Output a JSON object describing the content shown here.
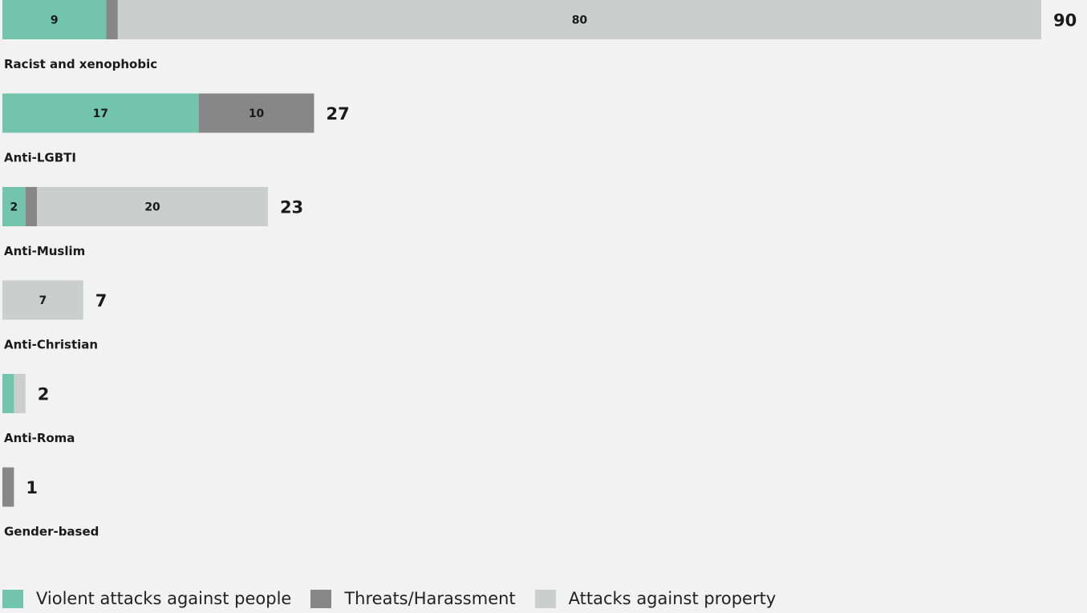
{
  "chart_data": {
    "type": "bar",
    "orientation": "horizontal",
    "stacked": true,
    "categories": [
      "Racist and xenophobic",
      "Anti-LGBTI",
      "Anti-Muslim",
      "Anti-Christian",
      "Anti-Roma",
      "Gender-based"
    ],
    "series": [
      {
        "name": "Violent attacks against people",
        "values": [
          9,
          17,
          2,
          0,
          1,
          0
        ]
      },
      {
        "name": "Threats/Harassment",
        "values": [
          1,
          10,
          1,
          0,
          0,
          1
        ]
      },
      {
        "name": "Attacks against property",
        "values": [
          80,
          0,
          20,
          7,
          1,
          0
        ]
      }
    ],
    "segment_labels": [
      [
        "9",
        null,
        "80"
      ],
      [
        "17",
        "10",
        null
      ],
      [
        "2",
        null,
        "20"
      ],
      [
        null,
        null,
        "7"
      ],
      [
        null,
        null,
        null
      ],
      [
        null,
        null,
        null
      ]
    ],
    "totals": [
      "90",
      "27",
      "23",
      "7",
      "2",
      "1"
    ],
    "colors": [
      "#72c5ab",
      "#878787",
      "#cbcecd"
    ],
    "xlim": [
      0,
      90
    ],
    "grid": false,
    "legend_position": "bottom-left"
  }
}
